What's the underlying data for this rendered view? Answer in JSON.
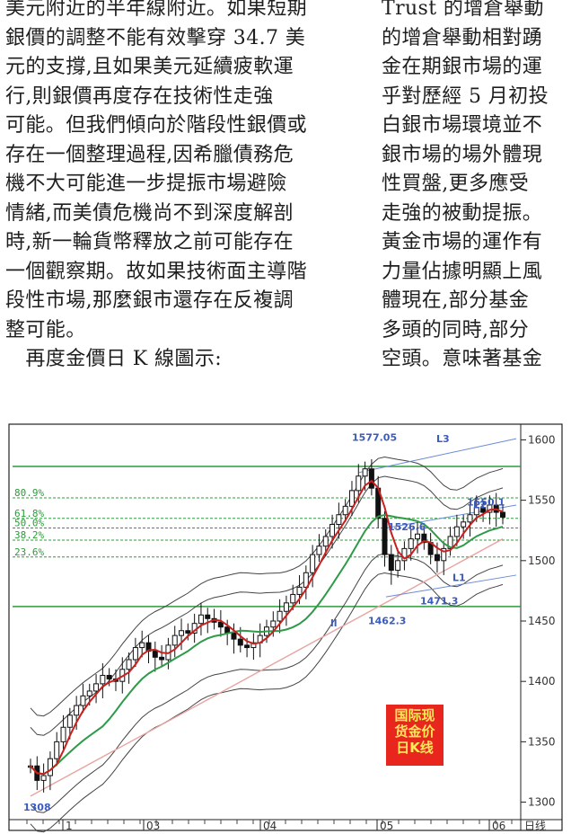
{
  "article": {
    "left_column": [
      "美元附近的半年線附近。如果短期",
      "銀價的調整不能有效擊穿 34.7 美",
      "元的支撐,且如果美元延續疲軟運",
      "行,則銀價再度存在技術性走強",
      "可能。但我們傾向於階段性銀價或",
      "存在一個整理過程,因希臘債務危",
      "機不大可能進一步提振市場避險",
      "情緒,而美債危機尚不到深度解剖",
      "時,新一輪貨幣釋放之前可能存在",
      "一個觀察期。故如果技術面主導階",
      "段性市場,那麼銀市還存在反複調",
      "整可能。",
      "　再度金價日 K 線圖示:"
    ],
    "right_column": [
      "Trust 的增倉舉動",
      "的增倉舉動相對踴",
      "金在期銀市場的運",
      "乎對歷經 5 月初投",
      "白銀市場環境並不",
      "銀市場的場外體現",
      "性買盤,更多應受",
      "走強的被動提振。",
      "黃金市場的運作有",
      "力量佔據明顯上風",
      "體現在,部分基金",
      "多頭的同時,部分",
      "空頭。意味著基金"
    ]
  },
  "chart_data": {
    "type": "candlestick",
    "stamp_text": [
      "国际现",
      "货金价",
      "日K线"
    ],
    "y_ticks": [
      "1600",
      "1550",
      "1500",
      "1450",
      "1400",
      "1350",
      "1300"
    ],
    "x_ticks": [
      "1",
      "03",
      "04",
      "05",
      "06"
    ],
    "x_axis_tail_label": "日线",
    "ylim": [
      1290,
      1610
    ],
    "fibonacci_levels": [
      {
        "label": "80.9%",
        "price": 1552
      },
      {
        "label": "61.8%",
        "price": 1535
      },
      {
        "label": "50.0%",
        "price": 1527
      },
      {
        "label": "38.2%",
        "price": 1517
      },
      {
        "label": "23.6%",
        "price": 1503
      }
    ],
    "horizontal_levels": [
      1578,
      1462
    ],
    "annotations": [
      {
        "text": "1577.05",
        "price": 1577.05
      },
      {
        "text": "1550.1",
        "price": 1550.1
      },
      {
        "text": "1526.6",
        "price": 1526.6
      },
      {
        "text": "1471.3",
        "price": 1471.3
      },
      {
        "text": "1462.3",
        "price": 1462.3
      },
      {
        "text": "1308",
        "price": 1308
      }
    ],
    "trend_line_labels": [
      "L3",
      "L2",
      "L1",
      "ll"
    ],
    "close_series": [
      1330,
      1318,
      1322,
      1336,
      1350,
      1362,
      1372,
      1380,
      1388,
      1392,
      1398,
      1405,
      1402,
      1400,
      1410,
      1418,
      1428,
      1432,
      1425,
      1420,
      1418,
      1430,
      1438,
      1442,
      1440,
      1448,
      1455,
      1452,
      1449,
      1445,
      1440,
      1435,
      1430,
      1428,
      1432,
      1438,
      1445,
      1450,
      1458,
      1465,
      1472,
      1478,
      1490,
      1505,
      1512,
      1520,
      1530,
      1538,
      1545,
      1558,
      1570,
      1576,
      1560,
      1535,
      1505,
      1492,
      1500,
      1510,
      1518,
      1522,
      1515,
      1505,
      1500,
      1510,
      1520,
      1528,
      1532,
      1538,
      1544,
      1540,
      1546,
      1540,
      1536
    ],
    "colors": {
      "grid": "#2c9c3a",
      "ma_short": "#c8201e",
      "ma_long": "#2f9a48",
      "band": "#444444",
      "trend": "#e8a4a0",
      "annotation": "#3b5bbf"
    }
  }
}
